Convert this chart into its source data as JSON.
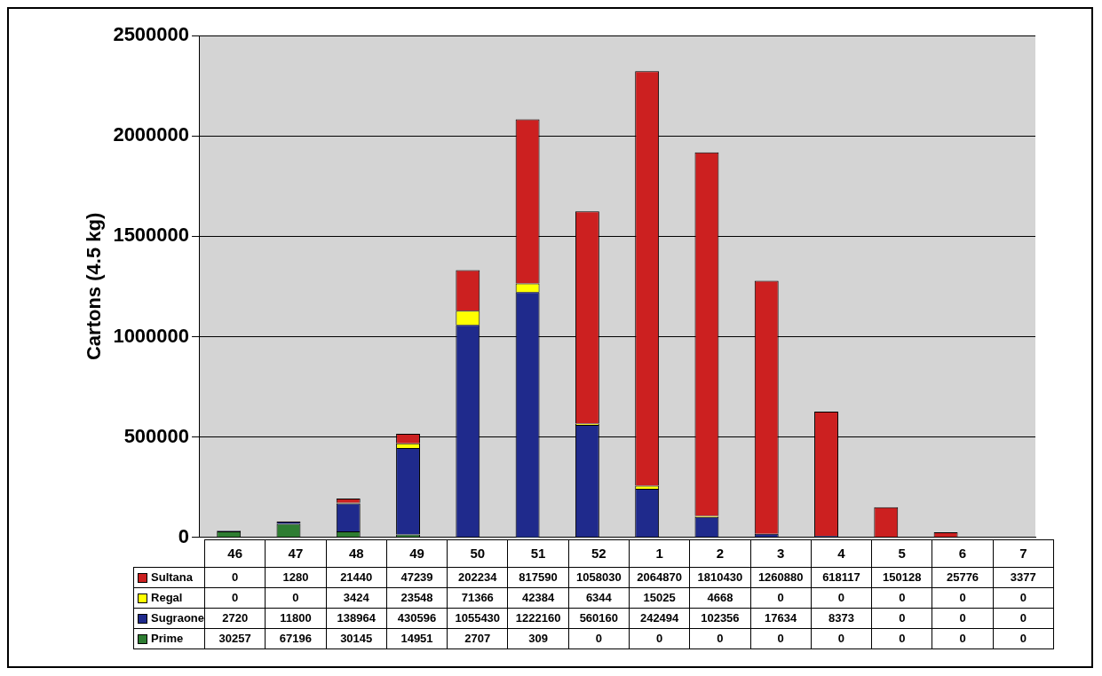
{
  "chart_data": {
    "type": "bar",
    "ylabel": "Cartons (4.5 kg)",
    "stacked": true,
    "grid": "y",
    "legend": "bottom",
    "data_labels": true,
    "categories": [
      "46",
      "47",
      "48",
      "49",
      "50",
      "51",
      "52",
      "1",
      "2",
      "3",
      "4",
      "5",
      "6",
      "7"
    ],
    "ylim": [
      0,
      2500000
    ],
    "yticks": [
      0,
      500000,
      1000000,
      1500000,
      2000000,
      2500000
    ],
    "series": [
      {
        "name": "Prime",
        "color": "#2e7d32",
        "values": [
          30257,
          67196,
          30145,
          14951,
          2707,
          309,
          0,
          0,
          0,
          0,
          0,
          0,
          0,
          0
        ]
      },
      {
        "name": "Sugraone",
        "color": "#1f2a8c",
        "values": [
          2720,
          11800,
          138964,
          430596,
          1055430,
          1222160,
          560160,
          242494,
          102356,
          17634,
          8373,
          0,
          0,
          0
        ]
      },
      {
        "name": "Regal",
        "color": "#ffff00",
        "values": [
          0,
          0,
          3424,
          23548,
          71366,
          42384,
          6344,
          15025,
          4668,
          0,
          0,
          0,
          0,
          0
        ]
      },
      {
        "name": "Sultana",
        "color": "#cc2020",
        "values": [
          0,
          1280,
          21440,
          47239,
          202234,
          817590,
          1058030,
          2064870,
          1810430,
          1260880,
          618117,
          150128,
          25776,
          3377
        ]
      }
    ]
  }
}
